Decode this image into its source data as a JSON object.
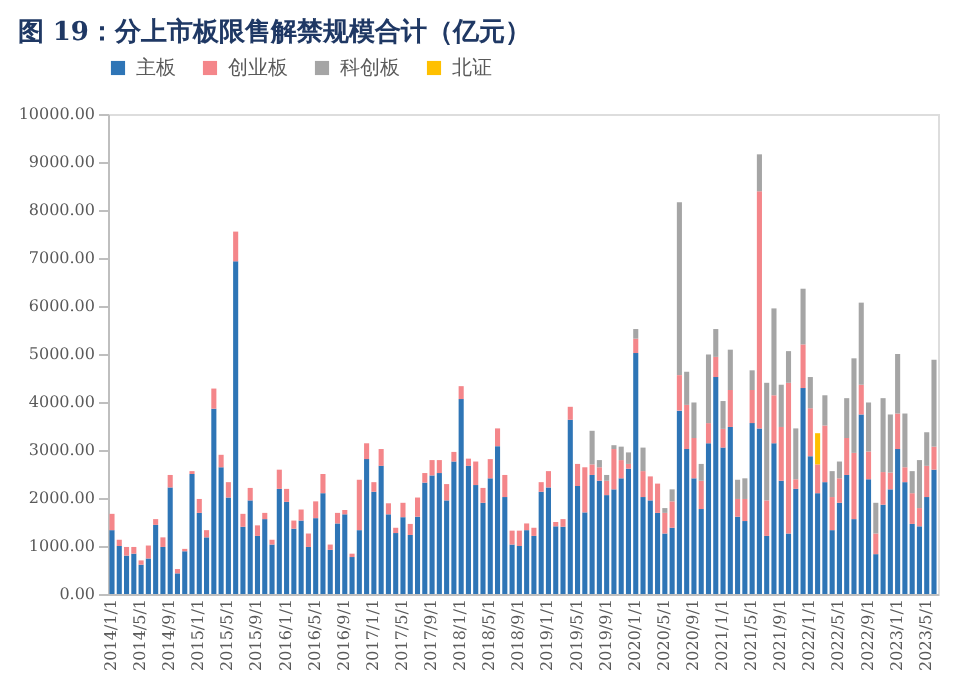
{
  "chart_data": {
    "type": "bar",
    "stacked": true,
    "title": "图 19：分上市板限售解禁规模合计（亿元）",
    "categories": [
      "2014/1/1",
      null,
      null,
      null,
      "2014/5/1",
      null,
      null,
      null,
      "2014/9/1",
      null,
      null,
      null,
      "2015/1/1",
      null,
      null,
      null,
      "2015/5/1",
      null,
      null,
      null,
      "2015/9/1",
      null,
      null,
      null,
      "2016/1/1",
      null,
      null,
      null,
      "2016/5/1",
      null,
      null,
      null,
      "2016/9/1",
      null,
      null,
      null,
      "2017/1/1",
      null,
      null,
      null,
      "2017/5/1",
      null,
      null,
      null,
      "2017/9/1",
      null,
      null,
      null,
      "2018/1/1",
      null,
      null,
      null,
      "2018/5/1",
      null,
      null,
      null,
      "2018/9/1",
      null,
      null,
      null,
      "2019/1/1",
      null,
      null,
      null,
      "2019/5/1",
      null,
      null,
      null,
      "2019/9/1",
      null,
      null,
      null,
      "2020/1/1",
      null,
      null,
      null,
      "2020/5/1",
      null,
      null,
      null,
      "2020/9/1",
      null,
      null,
      null,
      "2021/1/1",
      null,
      null,
      null,
      "2021/5/1",
      null,
      null,
      null,
      "2021/9/1",
      null,
      null,
      null,
      "2022/1/1",
      null,
      null,
      null,
      "2022/5/1",
      null,
      null,
      null,
      "2022/9/1",
      null,
      null,
      null,
      "2023/1/1",
      null,
      null,
      null,
      "2023/5/1",
      null
    ],
    "series": [
      {
        "name": "主板",
        "color": "#2e75b6",
        "values": [
          1330,
          1000,
          800,
          840,
          610,
          740,
          1440,
          980,
          2220,
          430,
          890,
          2500,
          1690,
          1180,
          3860,
          2640,
          2010,
          6930,
          1400,
          1950,
          1210,
          1560,
          1030,
          2190,
          1920,
          1360,
          1530,
          980,
          1580,
          2100,
          920,
          1470,
          1660,
          770,
          1330,
          2810,
          2130,
          2670,
          1660,
          1270,
          1600,
          1230,
          1610,
          2320,
          2470,
          2520,
          1950,
          2760,
          4060,
          2670,
          2270,
          1900,
          2410,
          3080,
          2020,
          1030,
          1000,
          1330,
          1210,
          2130,
          2220,
          1410,
          1400,
          3630,
          2250,
          1700,
          2480,
          2360,
          2060,
          2180,
          2410,
          2610,
          5020,
          2020,
          1950,
          1690,
          1260,
          1380,
          3820,
          3020,
          2410,
          1770,
          3140,
          4520,
          3050,
          3480,
          1610,
          1520,
          3560,
          3450,
          1210,
          3140,
          2360,
          1260,
          2190,
          4290,
          2870,
          2100,
          2330,
          1330,
          1900,
          2480,
          1560,
          3740,
          2390,
          830,
          1860,
          2180,
          3020,
          2330,
          1460,
          1410,
          2020,
          2590
        ]
      },
      {
        "name": "创业板",
        "color": "#f4868a",
        "values": [
          340,
          130,
          180,
          140,
          90,
          270,
          120,
          200,
          260,
          90,
          50,
          60,
          290,
          150,
          420,
          260,
          320,
          620,
          270,
          260,
          220,
          130,
          100,
          400,
          270,
          170,
          230,
          280,
          350,
          400,
          110,
          220,
          90,
          70,
          1050,
          330,
          200,
          350,
          230,
          110,
          300,
          230,
          400,
          200,
          320,
          270,
          340,
          200,
          270,
          150,
          490,
          310,
          400,
          370,
          460,
          290,
          320,
          140,
          170,
          200,
          340,
          90,
          160,
          270,
          460,
          940,
          220,
          280,
          300,
          840,
          380,
          100,
          300,
          540,
          500,
          610,
          430,
          550,
          740,
          920,
          840,
          590,
          420,
          420,
          390,
          770,
          370,
          460,
          690,
          4940,
          740,
          1000,
          1120,
          3140,
          200,
          910,
          1000,
          600,
          1180,
          690,
          510,
          770,
          1380,
          620,
          580,
          430,
          680,
          350,
          740,
          310,
          640,
          380,
          650,
          480
        ]
      },
      {
        "name": "科创板",
        "color": "#a5a5a5",
        "values": [
          null,
          null,
          null,
          null,
          null,
          null,
          null,
          null,
          null,
          null,
          null,
          null,
          null,
          null,
          null,
          null,
          null,
          null,
          null,
          null,
          null,
          null,
          null,
          null,
          null,
          null,
          null,
          null,
          null,
          null,
          null,
          null,
          null,
          null,
          null,
          null,
          null,
          null,
          null,
          null,
          null,
          null,
          null,
          null,
          null,
          null,
          null,
          null,
          null,
          null,
          null,
          null,
          null,
          null,
          null,
          null,
          null,
          null,
          null,
          null,
          null,
          null,
          null,
          null,
          null,
          null,
          700,
          150,
          120,
          80,
          280,
          240,
          200,
          490,
          null,
          null,
          100,
          250,
          3600,
          690,
          740,
          350,
          1430,
          580,
          580,
          840,
          400,
          430,
          410,
          770,
          2450,
          1810,
          880,
          660,
          1060,
          1160,
          650,
          null,
          630,
          540,
          350,
          830,
          1970,
          1710,
          1020,
          640,
          1540,
          1210,
          1240,
          1120,
          460,
          1000,
          700,
          1810
        ]
      },
      {
        "name": "北证",
        "color": "#ffc000",
        "values": [
          null,
          null,
          null,
          null,
          null,
          null,
          null,
          null,
          null,
          null,
          null,
          null,
          null,
          null,
          null,
          null,
          null,
          null,
          null,
          null,
          null,
          null,
          null,
          null,
          null,
          null,
          null,
          null,
          null,
          null,
          null,
          null,
          null,
          null,
          null,
          null,
          null,
          null,
          null,
          null,
          null,
          null,
          null,
          null,
          null,
          null,
          null,
          null,
          null,
          null,
          null,
          null,
          null,
          null,
          null,
          null,
          null,
          null,
          null,
          null,
          null,
          null,
          null,
          null,
          null,
          null,
          null,
          null,
          null,
          null,
          null,
          null,
          null,
          null,
          null,
          null,
          null,
          null,
          null,
          null,
          null,
          null,
          null,
          null,
          null,
          null,
          null,
          null,
          null,
          null,
          null,
          null,
          null,
          null,
          null,
          null,
          null,
          650,
          null,
          null,
          null,
          null,
          null,
          null,
          null,
          null,
          null,
          null,
          null,
          null,
          null,
          null,
          null,
          null
        ]
      }
    ],
    "ylim": [
      0,
      10000
    ],
    "yticks": [
      {
        "value": 0,
        "label": "0.00"
      },
      {
        "value": 1000,
        "label": "1000.00"
      },
      {
        "value": 2000,
        "label": "2000.00"
      },
      {
        "value": 3000,
        "label": "3000.00"
      },
      {
        "value": 4000,
        "label": "4000.00"
      },
      {
        "value": 5000,
        "label": "5000.00"
      },
      {
        "value": 6000,
        "label": "6000.00"
      },
      {
        "value": 7000,
        "label": "7000.00"
      },
      {
        "value": 8000,
        "label": "8000.00"
      },
      {
        "value": 9000,
        "label": "9000.00"
      },
      {
        "value": 10000,
        "label": "10000.00"
      }
    ],
    "grid": false,
    "legend": "top"
  }
}
